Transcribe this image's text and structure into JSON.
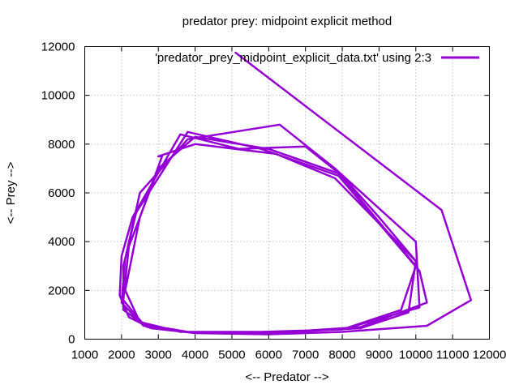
{
  "chart_data": {
    "type": "line",
    "title": "predator prey: midpoint explicit method",
    "xlabel": "<-- Predator -->",
    "ylabel": "<-- Prey -->",
    "xlim": [
      1000,
      12000
    ],
    "ylim": [
      0,
      12000
    ],
    "x_ticks": [
      "1000",
      "2000",
      "3000",
      "4000",
      "5000",
      "6000",
      "7000",
      "8000",
      "9000",
      "10000",
      "11000",
      "12000"
    ],
    "y_ticks": [
      "0",
      "2000",
      "4000",
      "6000",
      "8000",
      "10000",
      "12000"
    ],
    "grid": true,
    "legend_position": "top-right",
    "line_color": "#9400d3",
    "series": [
      {
        "name": "'predator_prey_midpoint_explicit_data.txt' using 2:3",
        "points": [
          [
            5100,
            11750
          ],
          [
            10700,
            5300
          ],
          [
            11500,
            1600
          ],
          [
            10300,
            550
          ],
          [
            8000,
            300
          ],
          [
            6000,
            200
          ],
          [
            4000,
            250
          ],
          [
            2800,
            450
          ],
          [
            2200,
            900
          ],
          [
            1950,
            1800
          ],
          [
            2000,
            3400
          ],
          [
            2300,
            5000
          ],
          [
            3600,
            8400
          ],
          [
            5200,
            7800
          ],
          [
            7000,
            7900
          ],
          [
            8000,
            6700
          ],
          [
            9000,
            5000
          ],
          [
            10000,
            3200
          ],
          [
            9800,
            1100
          ],
          [
            8500,
            450
          ],
          [
            6000,
            250
          ],
          [
            4000,
            250
          ],
          [
            2700,
            500
          ],
          [
            2050,
            1200
          ],
          [
            2050,
            3000
          ],
          [
            2400,
            5200
          ],
          [
            3800,
            8500
          ],
          [
            5800,
            7800
          ],
          [
            7900,
            6700
          ],
          [
            10100,
            2800
          ],
          [
            10300,
            1500
          ],
          [
            8500,
            500
          ],
          [
            6000,
            250
          ],
          [
            4000,
            250
          ],
          [
            2600,
            550
          ],
          [
            2000,
            1500
          ],
          [
            2100,
            3300
          ],
          [
            2500,
            6000
          ],
          [
            3800,
            8200
          ],
          [
            6300,
            8800
          ],
          [
            7800,
            7000
          ],
          [
            10000,
            4000
          ],
          [
            10100,
            1300
          ],
          [
            8000,
            400
          ],
          [
            6000,
            300
          ],
          [
            3800,
            300
          ],
          [
            2600,
            600
          ],
          [
            2050,
            1600
          ],
          [
            2200,
            3800
          ],
          [
            3000,
            7000
          ],
          [
            4000,
            8300
          ],
          [
            6000,
            7800
          ],
          [
            7900,
            6800
          ],
          [
            10000,
            3000
          ],
          [
            9600,
            1200
          ],
          [
            8000,
            400
          ],
          [
            5800,
            300
          ],
          [
            3600,
            300
          ],
          [
            2500,
            700
          ],
          [
            2100,
            2000
          ],
          [
            2500,
            5000
          ],
          [
            3100,
            7500
          ],
          [
            3000,
            7500
          ],
          [
            4000,
            8000
          ],
          [
            6200,
            7600
          ],
          [
            7800,
            6600
          ],
          [
            10000,
            3200
          ]
        ]
      }
    ]
  }
}
